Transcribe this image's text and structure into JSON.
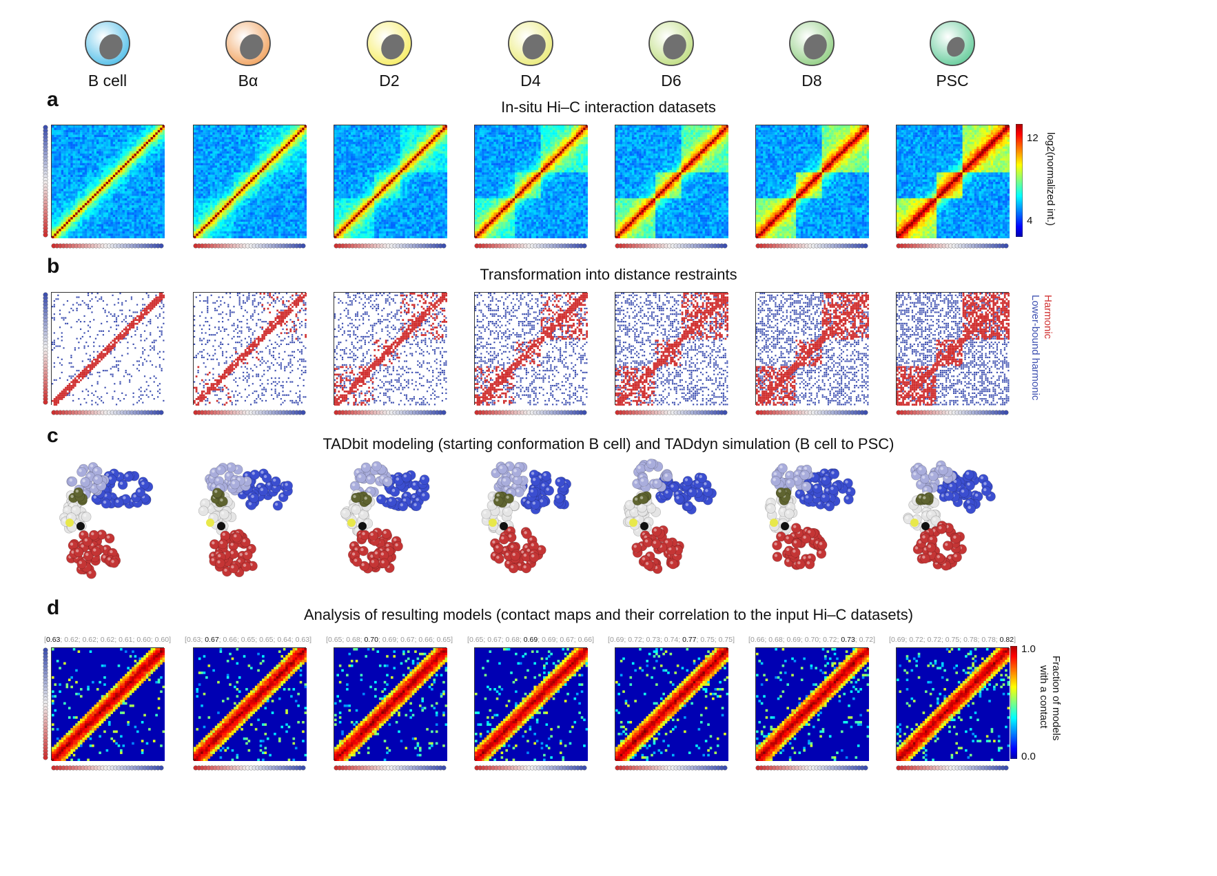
{
  "stages": [
    {
      "label": "B cell",
      "color": "#5ec3ea"
    },
    {
      "label": "Bα",
      "color": "#f2a96a"
    },
    {
      "label": "D2",
      "color": "#f7ee6e"
    },
    {
      "label": "D4",
      "color": "#ecec82"
    },
    {
      "label": "D6",
      "color": "#c4e08a"
    },
    {
      "label": "D8",
      "color": "#99d28c"
    },
    {
      "label": "PSC",
      "color": "#6fcfa1"
    }
  ],
  "panels": {
    "a": {
      "letter": "a",
      "title": "In-situ Hi–C interaction datasets",
      "colorbar": {
        "label": "log2(normalized int.)",
        "max_tick": "12",
        "min_tick": "4"
      }
    },
    "b": {
      "letter": "b",
      "title": "Transformation into distance restraints",
      "legend": {
        "harmonic": "Harmonic",
        "lower_bound": "Lower-bound harmonic"
      }
    },
    "c": {
      "letter": "c",
      "title": "TADbit modeling (starting conformation B cell) and TADdyn simulation (B cell to PSC)"
    },
    "d": {
      "letter": "d",
      "title": "Analysis of resulting models (contact maps and their correlation to the input Hi–C datasets)",
      "colorbar": {
        "label_line1": "Fraction of models",
        "label_line2": "with a contact",
        "max_tick": "1.0",
        "min_tick": "0.0"
      },
      "correlations": [
        {
          "values": [
            "0.63",
            "0.62",
            "0.62",
            "0.62",
            "0.61",
            "0.60",
            "0.60"
          ],
          "highlight": 0
        },
        {
          "values": [
            "0.63",
            "0.67",
            "0.66",
            "0.65",
            "0.65",
            "0.64",
            "0.63"
          ],
          "highlight": 1
        },
        {
          "values": [
            "0.65",
            "0.68",
            "0.70",
            "0.69",
            "0.67",
            "0.66",
            "0.65"
          ],
          "highlight": 2
        },
        {
          "values": [
            "0.65",
            "0.67",
            "0.68",
            "0.69",
            "0.69",
            "0.67",
            "0.66"
          ],
          "highlight": 3
        },
        {
          "values": [
            "0.69",
            "0.72",
            "0.73",
            "0.74",
            "0.77",
            "0.75",
            "0.75"
          ],
          "highlight": 4
        },
        {
          "values": [
            "0.66",
            "0.68",
            "0.69",
            "0.70",
            "0.72",
            "0.73",
            "0.72"
          ],
          "highlight": 5
        },
        {
          "values": [
            "0.69",
            "0.72",
            "0.72",
            "0.75",
            "0.78",
            "0.78",
            "0.82"
          ],
          "highlight": 6
        }
      ]
    }
  },
  "colors": {
    "red": "#d03030",
    "blue": "#3d4fb0",
    "model_red": "#c43535",
    "model_blue": "#3b4ed0",
    "model_lightblue": "#a9addc",
    "model_white": "#e5e5e5",
    "model_olive": "#5f6430",
    "model_yellow": "#e8e84a",
    "model_black": "#111111"
  }
}
